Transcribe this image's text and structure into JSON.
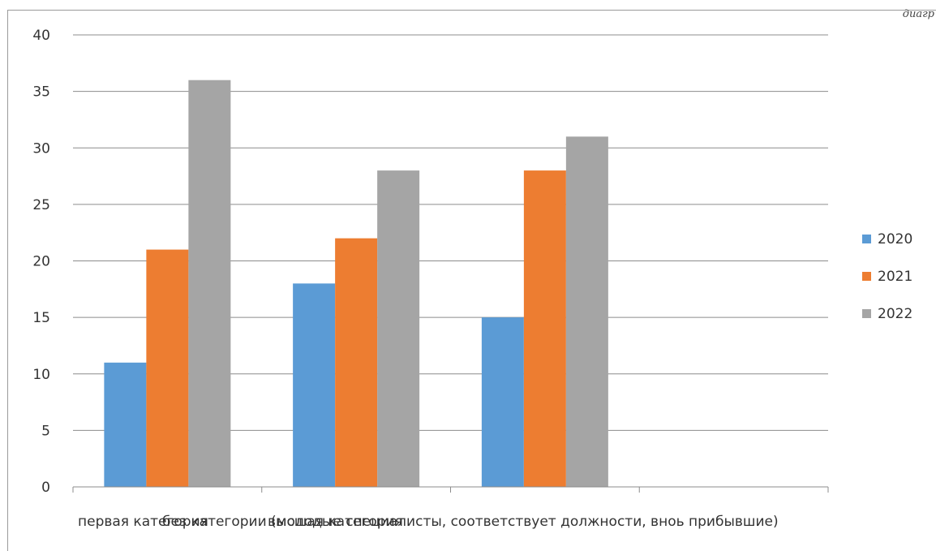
{
  "corner_text": "диагр",
  "chart_data": {
    "type": "bar",
    "categories": [
      "первая категория",
      "без категории (молодые специалисты, соответствует должности, вноь прибывшие)",
      "высшая категория"
    ],
    "series": [
      {
        "name": "2020",
        "values": [
          11,
          18,
          15
        ]
      },
      {
        "name": "2021",
        "values": [
          21,
          22,
          28
        ]
      },
      {
        "name": "2022",
        "values": [
          36,
          28,
          31
        ]
      }
    ],
    "colors": [
      "#5b9bd5",
      "#ed7d31",
      "#a5a5a5"
    ],
    "ylim": [
      0,
      40
    ],
    "yticks": [
      "0",
      "5",
      "10",
      "15",
      "20",
      "25",
      "30",
      "35",
      "40"
    ],
    "grid": true,
    "legend": "right",
    "title": "",
    "xlabel": "",
    "ylabel": ""
  }
}
